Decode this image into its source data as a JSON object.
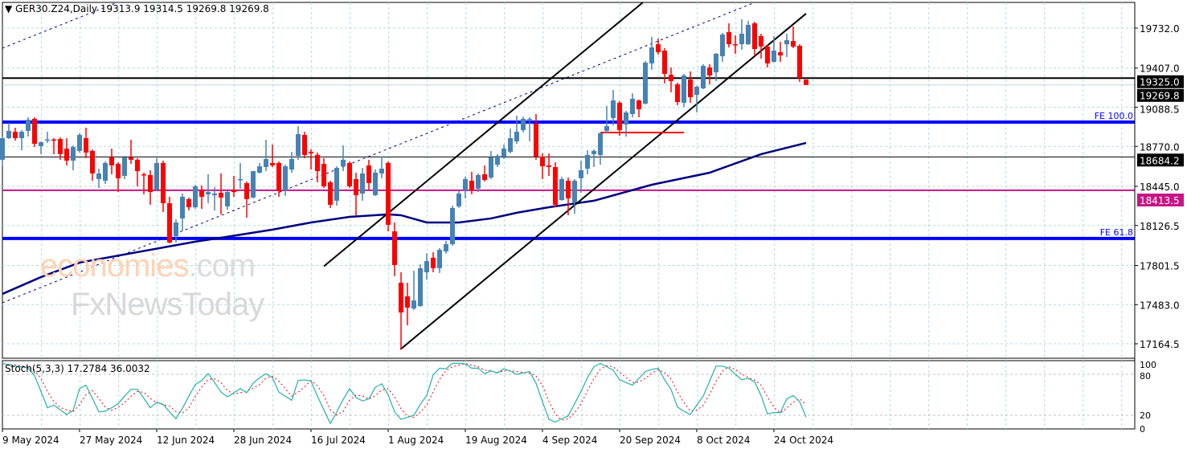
{
  "header": {
    "symbol": "GER30.Z24,Daily",
    "ohlc": "19313.9 19314.5 19269.8 19269.8"
  },
  "stoch_header": {
    "label": "Stoch(5,3,3) 17.2784 36.0032"
  },
  "watermark": {
    "brand": "economies",
    "tld": ".com",
    "brand2": "FxNewsToday"
  },
  "colors": {
    "bull": "#4682b4",
    "bear": "#ff0000",
    "ma": "#000080",
    "fe": "#0000ff",
    "magenta": "#c71585",
    "grid": "#b0dde0",
    "stoch_main": "#20b2aa",
    "stoch_signal": "#ff0000"
  },
  "chart_data": [
    {
      "type": "candlestick",
      "title": "GER30.Z24,Daily",
      "ylim": [
        17080,
        19960
      ],
      "y_ticks": [
        "19732.0",
        "19407.0",
        "19088.5",
        "18770.0",
        "18445.0",
        "18126.5",
        "17801.5",
        "17483.0",
        "17164.5"
      ],
      "x_ticks": [
        {
          "index": 0,
          "label": "9 May 2024"
        },
        {
          "index": 12,
          "label": "27 May 2024"
        },
        {
          "index": 24,
          "label": "12 Jun 2024"
        },
        {
          "index": 36,
          "label": "28 Jun 2024"
        },
        {
          "index": 48,
          "label": "16 Jul 2024"
        },
        {
          "index": 60,
          "label": "1 Aug 2024"
        },
        {
          "index": 72,
          "label": "19 Aug 2024"
        },
        {
          "index": 84,
          "label": "4 Sep 2024"
        },
        {
          "index": 96,
          "label": "20 Sep 2024"
        },
        {
          "index": 108,
          "label": "8 Oct 2024"
        },
        {
          "index": 120,
          "label": "24 Oct 2024"
        }
      ],
      "ohlc": [
        [
          18661,
          18850,
          18608,
          18837
        ],
        [
          18837,
          18961,
          18830,
          18896
        ],
        [
          18889,
          18922,
          18817,
          18837
        ],
        [
          18837,
          18902,
          18739,
          18889
        ],
        [
          18896,
          19007,
          18850,
          18987
        ],
        [
          18994,
          19007,
          18765,
          18791
        ],
        [
          18772,
          18810,
          18707,
          18804
        ],
        [
          18824,
          18889,
          18798,
          18826
        ],
        [
          18826,
          18837,
          18707,
          18820
        ],
        [
          18830,
          18844,
          18661,
          18707
        ],
        [
          18752,
          18837,
          18615,
          18654
        ],
        [
          18654,
          18778,
          18576,
          18765
        ],
        [
          18733,
          18876,
          18720,
          18863
        ],
        [
          18837,
          18922,
          18674,
          18720
        ],
        [
          18733,
          18746,
          18491,
          18550
        ],
        [
          18504,
          18589,
          18432,
          18550
        ],
        [
          18491,
          18648,
          18465,
          18635
        ],
        [
          18680,
          18752,
          18543,
          18615
        ],
        [
          18628,
          18641,
          18399,
          18511
        ],
        [
          18530,
          18693,
          18504,
          18680
        ],
        [
          18680,
          18824,
          18628,
          18661
        ],
        [
          18661,
          18674,
          18445,
          18569
        ],
        [
          18543,
          18556,
          18380,
          18537
        ],
        [
          18537,
          18576,
          18295,
          18399
        ],
        [
          18419,
          18674,
          18406,
          18635
        ],
        [
          18635,
          18654,
          18236,
          18308
        ],
        [
          18308,
          18360,
          17982,
          17988
        ],
        [
          18040,
          18177,
          17988,
          18151
        ],
        [
          18184,
          18386,
          18079,
          18360
        ],
        [
          18341,
          18354,
          18249,
          18275
        ],
        [
          18275,
          18458,
          18262,
          18445
        ],
        [
          18413,
          18452,
          18262,
          18360
        ],
        [
          18380,
          18543,
          18308,
          18399
        ],
        [
          18373,
          18439,
          18249,
          18386
        ],
        [
          18393,
          18550,
          18217,
          18354
        ],
        [
          18282,
          18406,
          18256,
          18399
        ],
        [
          18413,
          18530,
          18360,
          18399
        ],
        [
          18497,
          18635,
          18426,
          18504
        ],
        [
          18471,
          18484,
          18190,
          18341
        ],
        [
          18354,
          18569,
          18347,
          18569
        ],
        [
          18556,
          18635,
          18550,
          18608
        ],
        [
          18602,
          18824,
          18569,
          18667
        ],
        [
          18635,
          18785,
          18602,
          18615
        ],
        [
          18635,
          18648,
          18360,
          18406
        ],
        [
          18413,
          18621,
          18367,
          18608
        ],
        [
          18582,
          18726,
          18556,
          18667
        ],
        [
          18693,
          18935,
          18661,
          18870
        ],
        [
          18863,
          18889,
          18674,
          18700
        ],
        [
          18726,
          18746,
          18582,
          18713
        ],
        [
          18700,
          18720,
          18478,
          18569
        ],
        [
          18628,
          18674,
          18432,
          18445
        ],
        [
          18478,
          18491,
          18269,
          18295
        ],
        [
          18328,
          18608,
          18288,
          18595
        ],
        [
          18608,
          18778,
          18569,
          18661
        ],
        [
          18635,
          18648,
          18432,
          18445
        ],
        [
          18504,
          18556,
          18204,
          18373
        ],
        [
          18386,
          18595,
          18328,
          18550
        ],
        [
          18615,
          18661,
          18419,
          18471
        ],
        [
          18373,
          18582,
          18367,
          18556
        ],
        [
          18550,
          18687,
          18511,
          18589
        ],
        [
          18635,
          18648,
          18079,
          18132
        ],
        [
          18079,
          18151,
          17714,
          17805
        ],
        [
          17661,
          17746,
          17119,
          17419
        ],
        [
          17550,
          17661,
          17315,
          17459
        ],
        [
          17452,
          17759,
          17439,
          17517
        ],
        [
          17472,
          17811,
          17465,
          17779
        ],
        [
          17746,
          17900,
          17687,
          17837
        ],
        [
          17864,
          17910,
          17746,
          17779
        ],
        [
          17779,
          17942,
          17740,
          17929
        ],
        [
          17916,
          18001,
          17896,
          17975
        ],
        [
          17975,
          18288,
          17962,
          18269
        ],
        [
          18282,
          18413,
          18269,
          18386
        ],
        [
          18413,
          18524,
          18347,
          18504
        ],
        [
          18491,
          18563,
          18380,
          18419
        ],
        [
          18426,
          18550,
          18399,
          18537
        ],
        [
          18543,
          18615,
          18484,
          18497
        ],
        [
          18517,
          18733,
          18504,
          18680
        ],
        [
          18621,
          18707,
          18602,
          18693
        ],
        [
          18687,
          18785,
          18667,
          18752
        ],
        [
          18726,
          18915,
          18713,
          18837
        ],
        [
          18811,
          19020,
          18791,
          18889
        ],
        [
          18902,
          19013,
          18883,
          18994
        ],
        [
          18987,
          19007,
          18811,
          18994
        ],
        [
          18954,
          19033,
          18661,
          18687
        ],
        [
          18687,
          18713,
          18504,
          18608
        ],
        [
          18615,
          18713,
          18530,
          18602
        ],
        [
          18602,
          18641,
          18275,
          18295
        ],
        [
          18334,
          18524,
          18328,
          18504
        ],
        [
          18491,
          18517,
          18210,
          18347
        ],
        [
          18315,
          18504,
          18223,
          18491
        ],
        [
          18511,
          18654,
          18393,
          18576
        ],
        [
          18589,
          18739,
          18543,
          18700
        ],
        [
          18707,
          18746,
          18602,
          18733
        ],
        [
          18700,
          18889,
          18621,
          18876
        ],
        [
          18896,
          19099,
          18876,
          18935
        ],
        [
          19001,
          19229,
          18941,
          19144
        ],
        [
          19125,
          19138,
          18857,
          18902
        ],
        [
          18948,
          19059,
          18850,
          19046
        ],
        [
          19033,
          19203,
          19007,
          19157
        ],
        [
          19144,
          19151,
          19007,
          19072
        ],
        [
          19118,
          19464,
          19112,
          19451
        ],
        [
          19445,
          19660,
          19393,
          19575
        ],
        [
          19601,
          19647,
          19517,
          19536
        ],
        [
          19549,
          19569,
          19282,
          19360
        ],
        [
          19353,
          19412,
          19210,
          19301
        ],
        [
          19275,
          19288,
          19105,
          19131
        ],
        [
          19125,
          19360,
          19092,
          19347
        ],
        [
          19314,
          19380,
          19125,
          19170
        ],
        [
          19190,
          19262,
          19046,
          19255
        ],
        [
          19242,
          19438,
          19236,
          19425
        ],
        [
          19412,
          19438,
          19275,
          19347
        ],
        [
          19373,
          19530,
          19301,
          19523
        ],
        [
          19504,
          19693,
          19458,
          19680
        ],
        [
          19700,
          19771,
          19575,
          19601
        ],
        [
          19601,
          19673,
          19523,
          19595
        ],
        [
          19601,
          19804,
          19556,
          19686
        ],
        [
          19601,
          19791,
          19595,
          19758
        ],
        [
          19771,
          19784,
          19504,
          19562
        ],
        [
          19667,
          19686,
          19484,
          19582
        ],
        [
          19582,
          19595,
          19412,
          19445
        ],
        [
          19458,
          19667,
          19451,
          19549
        ],
        [
          19536,
          19621,
          19458,
          19510
        ],
        [
          19601,
          19686,
          19497,
          19634
        ],
        [
          19627,
          19745,
          19569,
          19582
        ],
        [
          19588,
          19601,
          19295,
          19327
        ],
        [
          19313.9,
          19314.5,
          19269.8,
          19269.8
        ]
      ],
      "moving_average": [
        [
          0,
          17570
        ],
        [
          6,
          17707
        ],
        [
          12,
          17825
        ],
        [
          30,
          17995
        ],
        [
          34,
          18027
        ],
        [
          42,
          18093
        ],
        [
          48,
          18151
        ],
        [
          54,
          18197
        ],
        [
          60,
          18217
        ],
        [
          62,
          18210
        ],
        [
          66,
          18151
        ],
        [
          71,
          18151
        ],
        [
          76,
          18184
        ],
        [
          80,
          18230
        ],
        [
          85,
          18275
        ],
        [
          92,
          18328
        ],
        [
          101,
          18458
        ],
        [
          110,
          18556
        ],
        [
          118,
          18707
        ],
        [
          125,
          18798
        ]
      ],
      "levels": [
        {
          "price": 19325.0,
          "label": "19325.0",
          "kind": "black-thick",
          "tag_bg": "#000000"
        },
        {
          "price": 19269.8,
          "label": "19269.8",
          "kind": "current",
          "tag_bg": "#000000"
        },
        {
          "price": 18968,
          "label": "FE 100.0",
          "kind": "fe"
        },
        {
          "price": 18684.2,
          "label": "18684.2",
          "kind": "black-thin",
          "tag_bg": "#000000"
        },
        {
          "price": 18413.5,
          "label": "18413.5",
          "kind": "magenta",
          "tag_bg": "#c71585"
        },
        {
          "price": 18021,
          "label": "FE 61.8",
          "kind": "fe"
        }
      ],
      "trendlines": [
        {
          "name": "channel-upper",
          "from": [
            50,
            17795
          ],
          "to": [
            99.6,
            19940
          ],
          "style": "solid"
        },
        {
          "name": "channel-lower",
          "from": [
            61.9,
            17119
          ],
          "to": [
            125,
            19850
          ],
          "style": "solid"
        },
        {
          "name": "dotted-trend-lower",
          "from": [
            0,
            17498
          ],
          "to": [
            117,
            19940
          ],
          "style": "dotted"
        },
        {
          "name": "dotted-trend-upper",
          "from": [
            0,
            19569
          ],
          "to": [
            17.8,
            19940
          ],
          "style": "dotted"
        },
        {
          "name": "support-segment",
          "from": [
            93.1,
            18883
          ],
          "to": [
            106,
            18883
          ],
          "style": "red"
        }
      ]
    },
    {
      "type": "line",
      "title": "Stoch(5,3,3)",
      "ylim": [
        0,
        100
      ],
      "y_ticks": [
        "100",
        "80",
        "20",
        "0"
      ],
      "series": [
        {
          "name": "main",
          "values": [
            96,
            94,
            92,
            91,
            89,
            78,
            55,
            31,
            35,
            28,
            21,
            27,
            59,
            64,
            45,
            25,
            26,
            31,
            37,
            48,
            58,
            58,
            45,
            31,
            39,
            36,
            25,
            15,
            30,
            48,
            65,
            71,
            81,
            68,
            54,
            47,
            53,
            59,
            53,
            67,
            75,
            81,
            75,
            54,
            48,
            42,
            71,
            72,
            70,
            48,
            28,
            8,
            25,
            43,
            59,
            46,
            41,
            44,
            61,
            66,
            50,
            25,
            14,
            17,
            20,
            36,
            49,
            79,
            89,
            88,
            96,
            96,
            95,
            89,
            89,
            81,
            85,
            82,
            88,
            85,
            80,
            82,
            84,
            67,
            40,
            14,
            10,
            15,
            19,
            37,
            55,
            75,
            91,
            96,
            91,
            86,
            72,
            68,
            64,
            74,
            84,
            87,
            89,
            72,
            58,
            32,
            26,
            21,
            35,
            48,
            70,
            92,
            92,
            89,
            80,
            72,
            74,
            69,
            49,
            22,
            24,
            24,
            44,
            49,
            40,
            17.28
          ]
        },
        {
          "name": "signal",
          "method": "sma3"
        }
      ],
      "last_values": {
        "main": 17.2784,
        "signal": 36.0032
      }
    }
  ]
}
